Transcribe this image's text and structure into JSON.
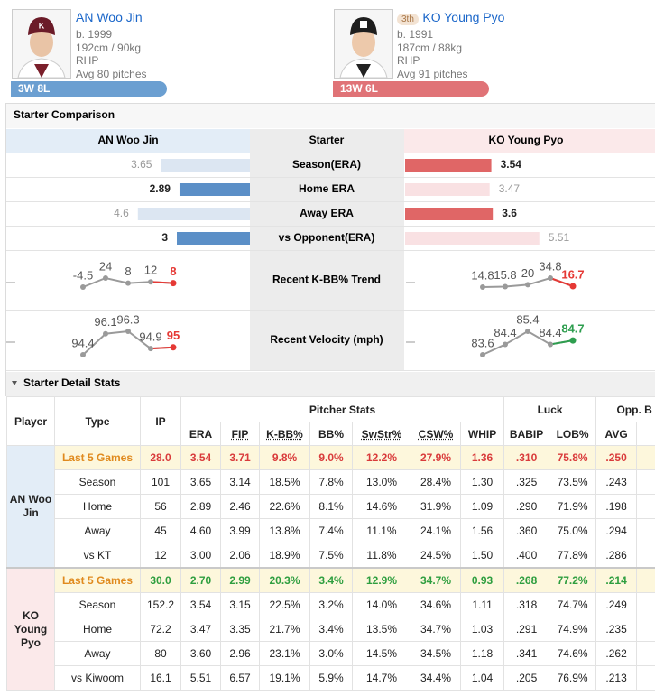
{
  "pitchers": [
    {
      "name": "AN Woo Jin",
      "born": "b. 1999",
      "size": "192cm / 90kg",
      "throws": "RHP",
      "pitches": "Avg 80 pitches",
      "record": "3W 8L",
      "color": "#6b9fd1"
    },
    {
      "rank": "3th",
      "name": "KO Young Pyo",
      "born": "b. 1991",
      "size": "187cm / 88kg",
      "throws": "RHP",
      "pitches": "Avg 91 pitches",
      "record": "13W 6L",
      "color": "#e07377"
    }
  ],
  "comparison": {
    "title": "Starter Comparison",
    "headers": [
      "AN Woo Jin",
      "Starter",
      "KO Young Pyo"
    ],
    "rows": [
      {
        "label": "Season(ERA)",
        "values": [
          3.65,
          3.54
        ]
      },
      {
        "label": "Home ERA",
        "values": [
          2.89,
          3.47
        ]
      },
      {
        "label": "Away ERA",
        "values": [
          4.6,
          3.6
        ]
      },
      {
        "label": "vs Opponent(ERA)",
        "values": [
          3,
          5.51
        ]
      }
    ],
    "trends": [
      {
        "label": "Recent K-BB% Trend",
        "series": [
          {
            "values": [
              -4.5,
              24,
              8,
              12,
              8
            ],
            "color": "#e53935"
          },
          {
            "values": [
              14.8,
              15.8,
              20,
              34.8,
              16.7
            ],
            "color": "#e53935"
          }
        ]
      },
      {
        "label": "Recent Velocity (mph)",
        "series": [
          {
            "values": [
              94.4,
              96.1,
              96.3,
              94.9,
              95
            ],
            "color": "#e53935"
          },
          {
            "values": [
              83.6,
              84.4,
              85.4,
              84.4,
              84.7
            ],
            "color": "#2e9e4f"
          }
        ]
      }
    ]
  },
  "detail": {
    "title": "Starter Detail Stats",
    "group_headers": [
      "Pitcher Stats",
      "Luck",
      "Opp. B"
    ],
    "columns": [
      "Player",
      "Type",
      "IP",
      "ERA",
      "FIP",
      "K-BB%",
      "BB%",
      "SwStr%",
      "CSW%",
      "WHIP",
      "BABIP",
      "LOB%",
      "AVG"
    ],
    "groups": [
      {
        "player": "AN Woo Jin",
        "color": "#d93b3b",
        "rows": [
          [
            "Last 5 Games",
            "28.0",
            "3.54",
            "3.71",
            "9.8%",
            "9.0%",
            "12.2%",
            "27.9%",
            "1.36",
            ".310",
            "75.8%",
            ".250"
          ],
          [
            "Season",
            "101",
            "3.65",
            "3.14",
            "18.5%",
            "7.8%",
            "13.0%",
            "28.4%",
            "1.30",
            ".325",
            "73.5%",
            ".243"
          ],
          [
            "Home",
            "56",
            "2.89",
            "2.46",
            "22.6%",
            "8.1%",
            "14.6%",
            "31.9%",
            "1.09",
            ".290",
            "71.9%",
            ".198"
          ],
          [
            "Away",
            "45",
            "4.60",
            "3.99",
            "13.8%",
            "7.4%",
            "11.1%",
            "24.1%",
            "1.56",
            ".360",
            "75.0%",
            ".294"
          ],
          [
            "vs KT",
            "12",
            "3.00",
            "2.06",
            "18.9%",
            "7.5%",
            "11.8%",
            "24.5%",
            "1.50",
            ".400",
            "77.8%",
            ".286"
          ]
        ]
      },
      {
        "player": "KO Young Pyo",
        "color": "#2e9e3f",
        "rows": [
          [
            "Last 5 Games",
            "30.0",
            "2.70",
            "2.99",
            "20.3%",
            "3.4%",
            "12.9%",
            "34.7%",
            "0.93",
            ".268",
            "77.2%",
            ".214"
          ],
          [
            "Season",
            "152.2",
            "3.54",
            "3.15",
            "22.5%",
            "3.2%",
            "14.0%",
            "34.6%",
            "1.11",
            ".318",
            "74.7%",
            ".249"
          ],
          [
            "Home",
            "72.2",
            "3.47",
            "3.35",
            "21.7%",
            "3.4%",
            "13.5%",
            "34.7%",
            "1.03",
            ".291",
            "74.9%",
            ".235"
          ],
          [
            "Away",
            "80",
            "3.60",
            "2.96",
            "23.1%",
            "3.0%",
            "14.5%",
            "34.5%",
            "1.18",
            ".341",
            "74.6%",
            ".262"
          ],
          [
            "vs Kiwoom",
            "16.1",
            "5.51",
            "6.57",
            "19.1%",
            "5.9%",
            "14.7%",
            "34.4%",
            "1.04",
            ".205",
            "76.9%",
            ".213"
          ]
        ]
      }
    ]
  }
}
